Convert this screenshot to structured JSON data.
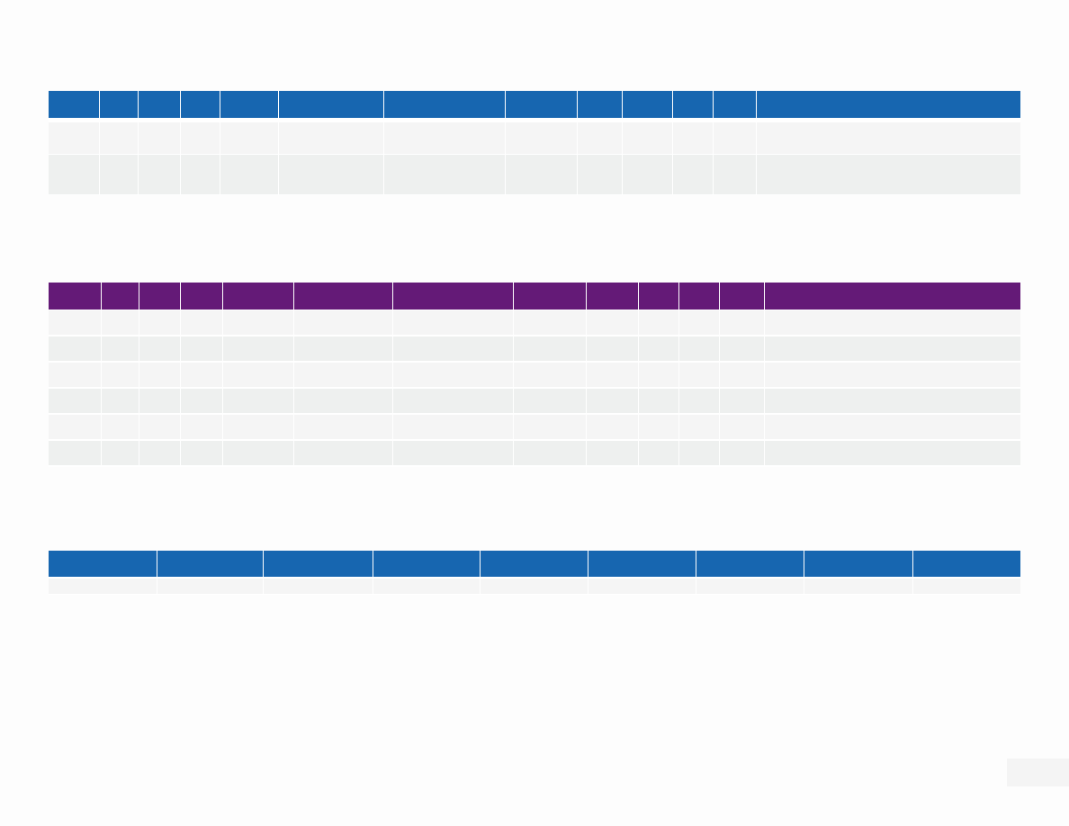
{
  "tables": [
    {
      "header_color": "#1766b0",
      "columns": [
        "",
        "",
        "",
        "",
        "",
        "",
        "",
        "",
        "",
        "",
        "",
        "",
        ""
      ],
      "rows": [
        [
          "",
          "",
          "",
          "",
          "",
          "",
          "",
          "",
          "",
          "",
          "",
          "",
          ""
        ],
        [
          "",
          "",
          "",
          "",
          "",
          "",
          "",
          "",
          "",
          "",
          "",
          "",
          ""
        ]
      ]
    },
    {
      "header_color": "#641a77",
      "columns": [
        "",
        "",
        "",
        "",
        "",
        "",
        "",
        "",
        "",
        "",
        "",
        "",
        ""
      ],
      "rows": [
        [
          "",
          "",
          "",
          "",
          "",
          "",
          "",
          "",
          "",
          "",
          "",
          "",
          ""
        ],
        [
          "",
          "",
          "",
          "",
          "",
          "",
          "",
          "",
          "",
          "",
          "",
          "",
          ""
        ],
        [
          "",
          "",
          "",
          "",
          "",
          "",
          "",
          "",
          "",
          "",
          "",
          "",
          ""
        ],
        [
          "",
          "",
          "",
          "",
          "",
          "",
          "",
          "",
          "",
          "",
          "",
          "",
          ""
        ],
        [
          "",
          "",
          "",
          "",
          "",
          "",
          "",
          "",
          "",
          "",
          "",
          "",
          ""
        ],
        [
          "",
          "",
          "",
          "",
          "",
          "",
          "",
          "",
          "",
          "",
          "",
          "",
          ""
        ]
      ]
    },
    {
      "header_color": "#1766b0",
      "columns": [
        "",
        "",
        "",
        "",
        "",
        "",
        "",
        "",
        ""
      ],
      "rows": [
        [
          "",
          "",
          "",
          "",
          "",
          "",
          "",
          "",
          ""
        ]
      ]
    }
  ],
  "page_number": ""
}
